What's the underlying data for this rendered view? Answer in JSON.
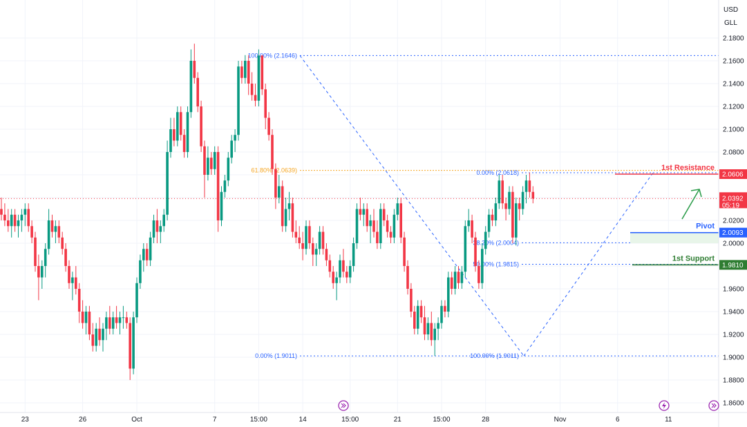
{
  "currency": {
    "base": "USD",
    "unit": "GLL"
  },
  "colors": {
    "up": "#089981",
    "down": "#f23645",
    "fib": "#2962ff",
    "fib618": "#f5a623",
    "resistance": "#f23645",
    "pivot": "#2962ff",
    "support": "#2e7d32"
  },
  "chart_data": {
    "type": "candlestick",
    "y_range": [
      1.85,
      2.19
    ],
    "y_ticks": [
      "2.1800",
      "2.1600",
      "2.1400",
      "2.1200",
      "2.1000",
      "2.0800",
      "2.0600",
      "2.0400",
      "2.0200",
      "2.0000",
      "1.9800",
      "1.9600",
      "1.9400",
      "1.9200",
      "1.9000",
      "1.8800",
      "1.8600"
    ],
    "x_ticks": [
      "23",
      "26",
      "Oct",
      "7",
      "15:00",
      "14",
      "15:00",
      "21",
      "15:00",
      "28",
      "Nov",
      "6",
      "11"
    ],
    "x_tick_index": [
      7,
      24,
      40,
      63,
      76,
      89,
      103,
      117,
      130,
      143,
      165,
      182,
      197
    ],
    "candles": [
      [
        2.03,
        2.04,
        2.02,
        2.025
      ],
      [
        2.025,
        2.035,
        2.015,
        2.02
      ],
      [
        2.02,
        2.03,
        2.01,
        2.015
      ],
      [
        2.015,
        2.03,
        2.005,
        2.025
      ],
      [
        2.025,
        2.03,
        2.01,
        2.015
      ],
      [
        2.015,
        2.025,
        2.005,
        2.02
      ],
      [
        2.02,
        2.03,
        2.01,
        2.025
      ],
      [
        2.025,
        2.035,
        2.015,
        2.03
      ],
      [
        2.03,
        2.035,
        2.01,
        2.015
      ],
      [
        2.015,
        2.02,
        2.0,
        2.005
      ],
      [
        2.005,
        2.01,
        1.975,
        1.98
      ],
      [
        1.98,
        1.99,
        1.95,
        1.97
      ],
      [
        1.97,
        1.985,
        1.96,
        1.98
      ],
      [
        1.98,
        2.0,
        1.97,
        1.995
      ],
      [
        1.995,
        2.03,
        1.99,
        2.02
      ],
      [
        2.02,
        2.025,
        2.005,
        2.01
      ],
      [
        2.01,
        2.02,
        2.0,
        2.015
      ],
      [
        2.015,
        2.02,
        2.0,
        2.005
      ],
      [
        2.005,
        2.01,
        1.99,
        1.995
      ],
      [
        1.995,
        2.0,
        1.975,
        1.98
      ],
      [
        1.98,
        1.985,
        1.96,
        1.965
      ],
      [
        1.965,
        1.975,
        1.95,
        1.97
      ],
      [
        1.97,
        1.98,
        1.955,
        1.96
      ],
      [
        1.96,
        1.965,
        1.93,
        1.94
      ],
      [
        1.94,
        1.95,
        1.925,
        1.93
      ],
      [
        1.93,
        1.945,
        1.92,
        1.94
      ],
      [
        1.94,
        1.945,
        1.915,
        1.92
      ],
      [
        1.92,
        1.93,
        1.905,
        1.91
      ],
      [
        1.91,
        1.93,
        1.905,
        1.925
      ],
      [
        1.925,
        1.935,
        1.91,
        1.915
      ],
      [
        1.915,
        1.93,
        1.905,
        1.925
      ],
      [
        1.925,
        1.94,
        1.915,
        1.935
      ],
      [
        1.935,
        1.945,
        1.92,
        1.925
      ],
      [
        1.925,
        1.94,
        1.92,
        1.935
      ],
      [
        1.935,
        1.945,
        1.925,
        1.93
      ],
      [
        1.93,
        1.94,
        1.92,
        1.935
      ],
      [
        1.935,
        1.945,
        1.925,
        1.935
      ],
      [
        1.935,
        1.94,
        1.925,
        1.93
      ],
      [
        1.93,
        1.935,
        1.88,
        1.89
      ],
      [
        1.89,
        1.94,
        1.885,
        1.935
      ],
      [
        1.935,
        1.97,
        1.93,
        1.965
      ],
      [
        1.965,
        1.99,
        1.96,
        1.985
      ],
      [
        1.985,
        2.0,
        1.975,
        1.995
      ],
      [
        1.995,
        2.0,
        1.98,
        1.985
      ],
      [
        1.985,
        2.01,
        1.98,
        2.005
      ],
      [
        2.005,
        2.025,
        2.0,
        2.02
      ],
      [
        2.02,
        2.03,
        2.0,
        2.01
      ],
      [
        2.01,
        2.02,
        2.0,
        2.015
      ],
      [
        2.015,
        2.03,
        2.01,
        2.025
      ],
      [
        2.025,
        2.09,
        2.02,
        2.08
      ],
      [
        2.08,
        2.11,
        2.075,
        2.1
      ],
      [
        2.1,
        2.11,
        2.085,
        2.09
      ],
      [
        2.09,
        2.12,
        2.085,
        2.115
      ],
      [
        2.115,
        2.12,
        2.09,
        2.095
      ],
      [
        2.095,
        2.1,
        2.075,
        2.08
      ],
      [
        2.08,
        2.12,
        2.075,
        2.115
      ],
      [
        2.115,
        2.17,
        2.11,
        2.16
      ],
      [
        2.16,
        2.175,
        2.14,
        2.145
      ],
      [
        2.145,
        2.15,
        2.115,
        2.12
      ],
      [
        2.12,
        2.125,
        2.08,
        2.085
      ],
      [
        2.085,
        2.09,
        2.04,
        2.06
      ],
      [
        2.06,
        2.085,
        2.055,
        2.075
      ],
      [
        2.075,
        2.08,
        2.06,
        2.065
      ],
      [
        2.065,
        2.085,
        2.06,
        2.08
      ],
      [
        2.08,
        2.085,
        2.01,
        2.02
      ],
      [
        2.02,
        2.05,
        2.015,
        2.045
      ],
      [
        2.045,
        2.06,
        2.04,
        2.055
      ],
      [
        2.055,
        2.08,
        2.05,
        2.075
      ],
      [
        2.075,
        2.095,
        2.07,
        2.09
      ],
      [
        2.09,
        2.1,
        2.08,
        2.095
      ],
      [
        2.095,
        2.16,
        2.09,
        2.155
      ],
      [
        2.155,
        2.16,
        2.14,
        2.145
      ],
      [
        2.145,
        2.165,
        2.14,
        2.16
      ],
      [
        2.16,
        2.165,
        2.13,
        2.14
      ],
      [
        2.14,
        2.15,
        2.125,
        2.13
      ],
      [
        2.13,
        2.14,
        2.12,
        2.125
      ],
      [
        2.125,
        2.17,
        2.12,
        2.1646
      ],
      [
        2.1646,
        2.165,
        2.13,
        2.135
      ],
      [
        2.135,
        2.14,
        2.1,
        2.11
      ],
      [
        2.11,
        2.115,
        2.09,
        2.095
      ],
      [
        2.095,
        2.1,
        2.06,
        2.065
      ],
      [
        2.065,
        2.07,
        2.03,
        2.04
      ],
      [
        2.04,
        2.06,
        2.035,
        2.05
      ],
      [
        2.05,
        2.055,
        2.01,
        2.015
      ],
      [
        2.015,
        2.04,
        2.01,
        2.03
      ],
      [
        2.03,
        2.045,
        2.02,
        2.035
      ],
      [
        2.035,
        2.04,
        2.005,
        2.01
      ],
      [
        2.01,
        2.02,
        2.0,
        2.005
      ],
      [
        2.005,
        2.015,
        1.995,
        2.0
      ],
      [
        2.0,
        2.01,
        1.985,
        1.995
      ],
      [
        1.995,
        2.02,
        1.99,
        2.015
      ],
      [
        2.015,
        2.02,
        1.995,
        2.0
      ],
      [
        2.0,
        2.005,
        1.98,
        1.99
      ],
      [
        1.99,
        2.0,
        1.98,
        1.995
      ],
      [
        1.995,
        2.015,
        1.99,
        2.01
      ],
      [
        2.01,
        2.015,
        1.99,
        1.995
      ],
      [
        1.995,
        2.0,
        1.98,
        1.985
      ],
      [
        1.985,
        1.99,
        1.97,
        1.975
      ],
      [
        1.975,
        1.98,
        1.96,
        1.965
      ],
      [
        1.965,
        1.975,
        1.95,
        1.97
      ],
      [
        1.97,
        1.99,
        1.965,
        1.985
      ],
      [
        1.985,
        1.995,
        1.97,
        1.975
      ],
      [
        1.975,
        1.98,
        1.965,
        1.97
      ],
      [
        1.97,
        1.985,
        1.965,
        1.98
      ],
      [
        1.98,
        2.005,
        1.975,
        2.0
      ],
      [
        2.0,
        2.035,
        1.995,
        2.03
      ],
      [
        2.03,
        2.04,
        2.02,
        2.025
      ],
      [
        2.025,
        2.035,
        2.015,
        2.03
      ],
      [
        2.03,
        2.035,
        2.01,
        2.015
      ],
      [
        2.015,
        2.025,
        2.0,
        2.02
      ],
      [
        2.02,
        2.03,
        2.005,
        2.01
      ],
      [
        2.01,
        2.02,
        1.995,
        2.0
      ],
      [
        2.0,
        2.035,
        1.995,
        2.03
      ],
      [
        2.03,
        2.035,
        2.015,
        2.02
      ],
      [
        2.02,
        2.025,
        2.005,
        2.01
      ],
      [
        2.01,
        2.015,
        2.0,
        2.005
      ],
      [
        2.005,
        2.03,
        2.0,
        2.025
      ],
      [
        2.025,
        2.04,
        2.02,
        2.035
      ],
      [
        2.035,
        2.04,
        2.0,
        2.005
      ],
      [
        2.005,
        2.01,
        1.975,
        1.98
      ],
      [
        1.98,
        1.985,
        1.955,
        1.96
      ],
      [
        1.96,
        1.965,
        1.935,
        1.94
      ],
      [
        1.94,
        1.945,
        1.92,
        1.925
      ],
      [
        1.925,
        1.95,
        1.92,
        1.945
      ],
      [
        1.945,
        1.95,
        1.93,
        1.935
      ],
      [
        1.935,
        1.945,
        1.915,
        1.92
      ],
      [
        1.92,
        1.935,
        1.915,
        1.93
      ],
      [
        1.93,
        1.94,
        1.91,
        1.915
      ],
      [
        1.915,
        1.93,
        1.9011,
        1.925
      ],
      [
        1.925,
        1.935,
        1.915,
        1.93
      ],
      [
        1.93,
        1.95,
        1.925,
        1.945
      ],
      [
        1.945,
        1.95,
        1.935,
        1.94
      ],
      [
        1.94,
        1.975,
        1.935,
        1.97
      ],
      [
        1.97,
        1.975,
        1.955,
        1.96
      ],
      [
        1.96,
        1.98,
        1.955,
        1.975
      ],
      [
        1.975,
        1.98,
        1.96,
        1.965
      ],
      [
        1.965,
        1.98,
        1.96,
        1.975
      ],
      [
        1.975,
        2.02,
        1.97,
        2.015
      ],
      [
        2.015,
        2.03,
        2.01,
        2.02
      ],
      [
        2.02,
        2.025,
        2.0,
        2.005
      ],
      [
        2.005,
        2.01,
        1.975,
        1.98
      ],
      [
        1.98,
        1.985,
        1.96,
        1.965
      ],
      [
        1.965,
        2.0,
        1.96,
        1.995
      ],
      [
        1.995,
        2.015,
        1.99,
        2.01
      ],
      [
        2.01,
        2.03,
        2.005,
        2.025
      ],
      [
        2.025,
        2.03,
        2.015,
        2.02
      ],
      [
        2.02,
        2.04,
        2.015,
        2.035
      ],
      [
        2.035,
        2.06,
        2.03,
        2.055
      ],
      [
        2.055,
        2.06,
        2.03,
        2.035
      ],
      [
        2.035,
        2.04,
        2.02,
        2.03
      ],
      [
        2.03,
        2.05,
        2.025,
        2.045
      ],
      [
        2.045,
        2.05,
        2.0,
        2.005
      ],
      [
        2.005,
        2.04,
        1.998,
        2.035
      ],
      [
        2.035,
        2.04,
        2.02,
        2.03
      ],
      [
        2.03,
        2.05,
        2.025,
        2.045
      ],
      [
        2.045,
        2.06,
        2.035,
        2.055
      ],
      [
        2.055,
        2.062,
        2.04,
        2.045
      ],
      [
        2.045,
        2.05,
        2.035,
        2.0392
      ]
    ],
    "last_price": "2.0392",
    "countdown": "05:19",
    "fibonacci": [
      {
        "label": "100.00% (2.1646)",
        "price": 2.1646
      },
      {
        "label": "61.80% (2.0639)",
        "price": 2.0639
      },
      {
        "label": "0.00% (1.9011)",
        "price": 1.9011
      },
      {
        "label": "0.00% (2.0618)",
        "price": 2.0618
      },
      {
        "label": "38.20% (2.0004)",
        "price": 2.0004
      },
      {
        "label": "50.00% (1.9815)",
        "price": 1.9815
      },
      {
        "label": "100.00% (1.9011)",
        "price": 1.9011
      }
    ],
    "levels": {
      "resistance": {
        "label": "1st Resistance",
        "value": "2.0606",
        "price": 2.0606
      },
      "pivot": {
        "label": "Pivot",
        "value": "2.0093",
        "price": 2.0093
      },
      "support": {
        "label": "1st Support",
        "value": "1.9810",
        "price": 1.981
      }
    }
  }
}
